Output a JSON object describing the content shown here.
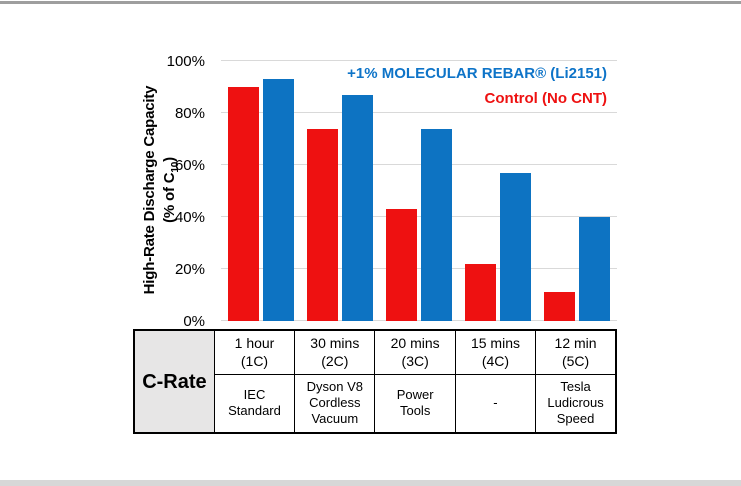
{
  "chart": {
    "legend": [
      {
        "label": "+1% MOLECULAR REBAR® (Li2151)",
        "color": "#0e74c8"
      },
      {
        "label": "Control (No CNT)",
        "color": "#ee1111"
      }
    ],
    "y_axis_title_line1": "High-Rate Discharge Capacity",
    "y_axis_title_line2_prefix": "(% of C",
    "y_axis_title_line2_sub": "10",
    "y_axis_title_line2_suffix": ")"
  },
  "chart_data": {
    "type": "bar",
    "categories": [
      "1 hour (1C)",
      "30 mins (2C)",
      "20 mins (3C)",
      "15 mins (4C)",
      "12 min (5C)"
    ],
    "series": [
      {
        "name": "Control (No CNT)",
        "color": "#ee1111",
        "values": [
          90,
          74,
          43,
          22,
          11
        ]
      },
      {
        "name": "+1% MOLECULAR REBAR® (Li2151)",
        "color": "#0d73c2",
        "values": [
          93,
          87,
          74,
          57,
          40
        ]
      }
    ],
    "title": "",
    "xlabel": "C-Rate",
    "ylabel": "High-Rate Discharge Capacity (% of C10)",
    "ylim": [
      0,
      100
    ],
    "yticks": [
      "0%",
      "20%",
      "40%",
      "60%",
      "80%",
      "100%"
    ],
    "grid": true,
    "legend_position": "top-right"
  },
  "table": {
    "header": "C-Rate",
    "rows": [
      [
        "1 hour\n(1C)",
        "30 mins\n(2C)",
        "20 mins\n(3C)",
        "15 mins\n(4C)",
        "12 min\n(5C)"
      ],
      [
        "IEC\nStandard",
        "Dyson V8\nCordless\nVacuum",
        "Power\nTools",
        "-",
        "Tesla\nLudicrous\nSpeed"
      ]
    ]
  }
}
